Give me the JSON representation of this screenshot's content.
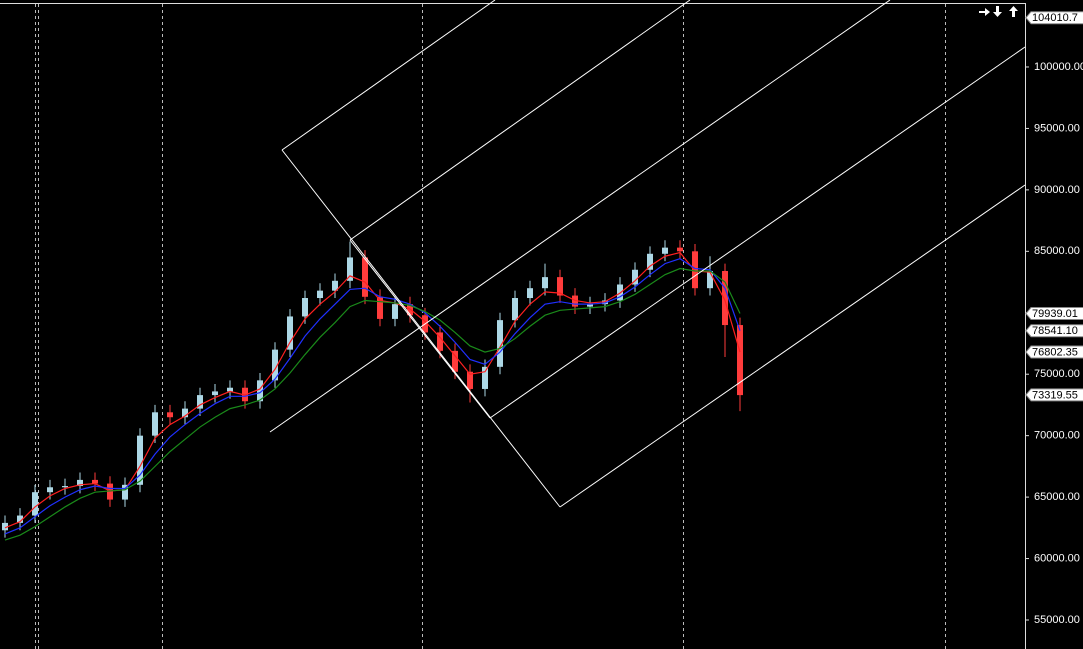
{
  "chart_data": {
    "type": "candlestick",
    "ylim": [
      52640,
      105450
    ],
    "yticks": [
      {
        "value": 55000,
        "label": "55000.00"
      },
      {
        "value": 60000,
        "label": "60000.00"
      },
      {
        "value": 65000,
        "label": "65000.00"
      },
      {
        "value": 70000,
        "label": "70000.00"
      },
      {
        "value": 75000,
        "label": "75000.00"
      },
      {
        "value": 80000,
        "label": "80000.00"
      },
      {
        "value": 85000,
        "label": "85000.00"
      },
      {
        "value": 90000,
        "label": "90000.00"
      },
      {
        "value": 95000,
        "label": "95000.00"
      },
      {
        "value": 100000,
        "label": "100000.00"
      }
    ],
    "up_color": "#add8e6",
    "down_color": "#ff3c3c",
    "candles": [
      [
        62300,
        63500,
        61700,
        62900
      ],
      [
        62900,
        64100,
        62300,
        63500
      ],
      [
        63500,
        66000,
        62900,
        65400
      ],
      [
        65400,
        66400,
        64800,
        65800
      ],
      [
        65800,
        66500,
        65200,
        65900
      ],
      [
        65900,
        67000,
        65300,
        66400
      ],
      [
        66400,
        67000,
        65500,
        66100
      ],
      [
        66100,
        66700,
        64200,
        64800
      ],
      [
        64800,
        66600,
        64200,
        66000
      ],
      [
        66000,
        70600,
        65400,
        70000
      ],
      [
        70000,
        72500,
        69400,
        71900
      ],
      [
        71900,
        72500,
        70900,
        71500
      ],
      [
        71500,
        72800,
        70900,
        72200
      ],
      [
        72200,
        73900,
        71600,
        73300
      ],
      [
        73300,
        74200,
        72700,
        73600
      ],
      [
        73600,
        74500,
        73000,
        73900
      ],
      [
        73900,
        74500,
        72200,
        72800
      ],
      [
        72800,
        75100,
        72200,
        74500
      ],
      [
        74500,
        77600,
        73900,
        77000
      ],
      [
        77000,
        80300,
        76400,
        79700
      ],
      [
        79700,
        81800,
        79100,
        81200
      ],
      [
        81200,
        82400,
        80600,
        81800
      ],
      [
        81800,
        83200,
        81200,
        82600
      ],
      [
        82600,
        85800,
        82000,
        84500
      ],
      [
        84500,
        85100,
        80700,
        81300
      ],
      [
        81300,
        81900,
        78900,
        79500
      ],
      [
        79500,
        81300,
        78900,
        80700
      ],
      [
        80700,
        81300,
        79200,
        79800
      ],
      [
        79800,
        80400,
        77800,
        78400
      ],
      [
        78400,
        79000,
        76300,
        76900
      ],
      [
        76900,
        77500,
        74600,
        75200
      ],
      [
        75200,
        75800,
        72700,
        73800
      ],
      [
        73800,
        76200,
        73200,
        75600
      ],
      [
        75600,
        80000,
        75000,
        79400
      ],
      [
        79400,
        81800,
        78800,
        81200
      ],
      [
        81200,
        82600,
        80600,
        82000
      ],
      [
        82000,
        84000,
        81400,
        82900
      ],
      [
        82900,
        83500,
        80800,
        81400
      ],
      [
        81400,
        82000,
        79900,
        80500
      ],
      [
        80500,
        81300,
        79900,
        80700
      ],
      [
        80700,
        81600,
        80100,
        81000
      ],
      [
        81000,
        82900,
        80400,
        82300
      ],
      [
        82300,
        84100,
        81700,
        83500
      ],
      [
        83500,
        85400,
        82900,
        84800
      ],
      [
        84800,
        85900,
        84200,
        85300
      ],
      [
        85300,
        85900,
        84400,
        85000
      ],
      [
        85000,
        85600,
        81400,
        82000
      ],
      [
        82000,
        84600,
        81400,
        83400
      ],
      [
        83400,
        84000,
        76400,
        79000
      ],
      [
        79000,
        79600,
        72000,
        73300
      ]
    ],
    "series": [
      {
        "color": "#ff2020",
        "values": [
          62500,
          63000,
          64200,
          65100,
          65700,
          66000,
          66100,
          65500,
          65600,
          67500,
          69800,
          70900,
          71600,
          72500,
          73100,
          73600,
          73300,
          73800,
          75400,
          77600,
          79500,
          80700,
          81700,
          83000,
          82500,
          81000,
          80800,
          80300,
          79300,
          78000,
          76500,
          75000,
          75200,
          77200,
          79300,
          80700,
          81700,
          81600,
          81000,
          80800,
          80900,
          81600,
          82600,
          83800,
          84600,
          84900,
          83400,
          83300,
          81000,
          76800
        ]
      },
      {
        "color": "#2030ff",
        "values": [
          62000,
          62500,
          63400,
          64300,
          65000,
          65600,
          65900,
          65700,
          65700,
          66800,
          68500,
          69900,
          70900,
          71800,
          72600,
          73200,
          73200,
          73500,
          74600,
          76300,
          78100,
          79500,
          80700,
          81900,
          82000,
          81300,
          81100,
          80700,
          80000,
          78900,
          77600,
          76200,
          75800,
          76800,
          78300,
          79600,
          80700,
          80900,
          80700,
          80700,
          80800,
          81300,
          82100,
          83100,
          84000,
          84400,
          83600,
          83500,
          82000,
          78540
        ]
      },
      {
        "color": "#1a8a1a",
        "values": [
          61500,
          61900,
          62600,
          63400,
          64200,
          64900,
          65400,
          65500,
          65600,
          66300,
          67500,
          68700,
          69700,
          70700,
          71500,
          72200,
          72500,
          72900,
          73800,
          75100,
          76600,
          78000,
          79200,
          80500,
          81000,
          80900,
          80800,
          80600,
          80100,
          79400,
          78400,
          77300,
          76800,
          77100,
          77900,
          78900,
          79800,
          80200,
          80300,
          80400,
          80500,
          80900,
          81500,
          82300,
          83100,
          83600,
          83400,
          83400,
          82500,
          79940
        ]
      }
    ],
    "price_labels": [
      {
        "value": 104010.7,
        "label": "104010.7"
      },
      {
        "value": 79939.01,
        "label": "79939.01"
      },
      {
        "value": 78541.1,
        "label": "78541.10"
      },
      {
        "value": 76802.35,
        "label": "76802.35"
      },
      {
        "value": 73319.55,
        "label": "73319.55"
      }
    ]
  }
}
